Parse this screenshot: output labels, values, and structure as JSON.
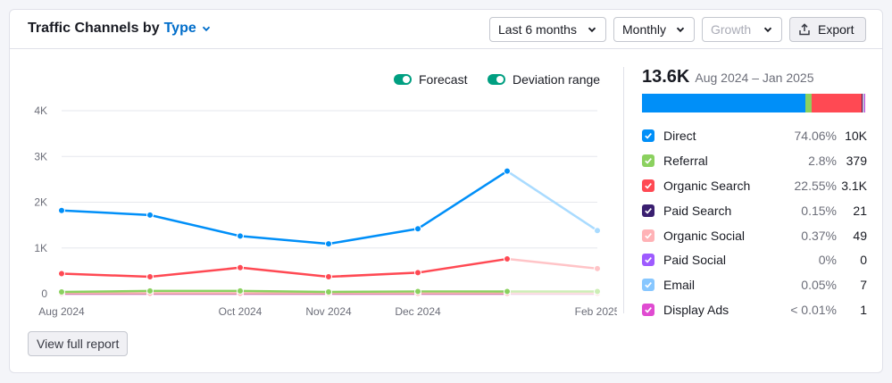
{
  "header": {
    "title_prefix": "Traffic Channels by",
    "title_type": "Type",
    "period_select": "Last 6 months",
    "granularity_select": "Monthly",
    "metric_select": "Growth",
    "export_label": "Export"
  },
  "legend_top": {
    "forecast_label": "Forecast",
    "deviation_label": "Deviation range"
  },
  "summary": {
    "total": "13.6K",
    "range": "Aug 2024 – Jan 2025"
  },
  "channels": [
    {
      "name": "Direct",
      "pct": "74.06%",
      "count": "10K",
      "share": 74.06,
      "color": "#008ff8",
      "light": "#a9dbff"
    },
    {
      "name": "Referral",
      "pct": "2.8%",
      "count": "379",
      "share": 2.8,
      "color": "#8bd15f",
      "light": "#cdeeb6"
    },
    {
      "name": "Organic Search",
      "pct": "22.55%",
      "count": "3.1K",
      "share": 22.55,
      "color": "#ff4953",
      "light": "#ffc4c7"
    },
    {
      "name": "Paid Search",
      "pct": "0.15%",
      "count": "21",
      "share": 0.15,
      "color": "#3a1f70",
      "light": "#c2b4de"
    },
    {
      "name": "Organic Social",
      "pct": "0.37%",
      "count": "49",
      "share": 0.37,
      "color": "#ffb2b6",
      "light": "#ffe0e2"
    },
    {
      "name": "Paid Social",
      "pct": "0%",
      "count": "0",
      "share": 0,
      "color": "#9e5bff",
      "light": "#dcc7ff"
    },
    {
      "name": "Email",
      "pct": "0.05%",
      "count": "7",
      "share": 0.05,
      "color": "#87c7ff",
      "light": "#d3ebff"
    },
    {
      "name": "Display Ads",
      "pct": "< 0.01%",
      "count": "1",
      "share": 0.01,
      "color": "#e04bd1",
      "light": "#f5c6ef"
    }
  ],
  "report_button": "View full report",
  "chart_data": {
    "type": "line",
    "x": [
      "2024-08",
      "2024-09",
      "2024-10",
      "2024-11",
      "2024-12",
      "2025-01",
      "2025-02"
    ],
    "x_tick_labels": [
      "Aug 2024",
      "",
      "Oct 2024",
      "Nov 2024",
      "Dec 2024",
      "",
      "Feb 2025"
    ],
    "y_ticks": [
      "0",
      "1K",
      "2K",
      "3K",
      "4K"
    ],
    "ylim": [
      0,
      4000
    ],
    "forecast_from_index": 5,
    "series": [
      {
        "name": "Direct",
        "color": "#008ff8",
        "values": [
          1820,
          1720,
          1260,
          1090,
          1420,
          2680,
          1380
        ]
      },
      {
        "name": "Organic Search",
        "color": "#ff4953",
        "values": [
          440,
          370,
          570,
          370,
          460,
          760,
          550
        ]
      },
      {
        "name": "Referral",
        "color": "#8bd15f",
        "values": [
          40,
          60,
          60,
          40,
          50,
          50,
          50
        ]
      },
      {
        "name": "Organic Social",
        "color": "#ffb2b6",
        "values": [
          10,
          10,
          10,
          10,
          10,
          10,
          10
        ]
      },
      {
        "name": "Paid Search",
        "color": "#3a1f70",
        "values": [
          5,
          5,
          5,
          5,
          5,
          5,
          5
        ]
      },
      {
        "name": "Display Ads",
        "color": "#e04bd1",
        "values": [
          0,
          0,
          0,
          0,
          0,
          0,
          0
        ]
      }
    ]
  }
}
